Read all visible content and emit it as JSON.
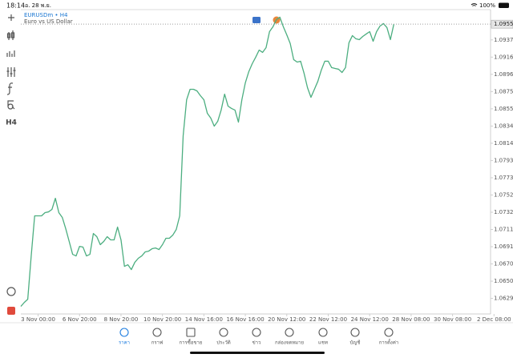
{
  "status_bar": {
    "time": "18:14",
    "date": "อ. 28 พ.ย.",
    "battery": "100%"
  },
  "toolbar": {
    "timeframe": "H4"
  },
  "chart_data": {
    "type": "line",
    "title": "EURUSDm • H4",
    "subtitle": "Euro vs US Dollar",
    "x": [
      0,
      1,
      2,
      3,
      4,
      5,
      6,
      7,
      8,
      9,
      10,
      11,
      12,
      13,
      14,
      15,
      16,
      17,
      18,
      19,
      20,
      21,
      22,
      23,
      24,
      25,
      26,
      27,
      28,
      29,
      30,
      31,
      32,
      33,
      34,
      35,
      36,
      37,
      38,
      39,
      40,
      41,
      42,
      43,
      44,
      45,
      46,
      47,
      48,
      49,
      50,
      51,
      52,
      53,
      54,
      55,
      56,
      57,
      58,
      59,
      60,
      61,
      62,
      63,
      64,
      65,
      66,
      67,
      68,
      69,
      70,
      71,
      72,
      73,
      74,
      75,
      76,
      77,
      78,
      79,
      80,
      81,
      82,
      83,
      84,
      85,
      86,
      87,
      88,
      89,
      90,
      91,
      92,
      93,
      94,
      95,
      96,
      97,
      98,
      99,
      100,
      101,
      102,
      103,
      104,
      105,
      106,
      107,
      108
    ],
    "values": [
      1.062,
      1.06247,
      1.06285,
      1.068,
      1.07277,
      1.07277,
      1.07277,
      1.07315,
      1.07324,
      1.07353,
      1.07486,
      1.07315,
      1.07258,
      1.07124,
      1.06972,
      1.06819,
      1.068,
      1.06914,
      1.06905,
      1.068,
      1.06819,
      1.07067,
      1.07029,
      1.06934,
      1.06972,
      1.07029,
      1.06991,
      1.06991,
      1.07143,
      1.06991,
      1.06676,
      1.06695,
      1.06638,
      1.06724,
      1.06772,
      1.068,
      1.06848,
      1.06857,
      1.06886,
      1.06895,
      1.06876,
      1.06934,
      1.0701,
      1.0701,
      1.07048,
      1.07115,
      1.07277,
      1.0823,
      1.08658,
      1.08782,
      1.08782,
      1.08763,
      1.08706,
      1.08658,
      1.08496,
      1.08439,
      1.08344,
      1.08401,
      1.08535,
      1.08725,
      1.08582,
      1.08554,
      1.08535,
      1.08392,
      1.08658,
      1.08859,
      1.08992,
      1.09087,
      1.09164,
      1.09249,
      1.09221,
      1.09278,
      1.09468,
      1.09526,
      1.09611,
      1.0964,
      1.09526,
      1.0943,
      1.09326,
      1.09135,
      1.09106,
      1.09116,
      1.08973,
      1.08801,
      1.08687,
      1.08782,
      1.08878,
      1.09011,
      1.09116,
      1.09116,
      1.0904,
      1.0903,
      1.09021,
      1.08982,
      1.0904,
      1.09335,
      1.09421,
      1.09383,
      1.09373,
      1.09411,
      1.0944,
      1.09468,
      1.09354,
      1.09468,
      1.09535,
      1.09564,
      1.09516,
      1.09373,
      1.09557
    ],
    "color": "#4cae80",
    "current_price": 1.09557,
    "xlim": [
      0,
      136
    ],
    "ylim": [
      1.0611,
      1.0973
    ],
    "xticks": [
      {
        "value": 5,
        "label": "3 Nov 00:00"
      },
      {
        "value": 17,
        "label": "6 Nov 20:00"
      },
      {
        "value": 29,
        "label": "8 Nov 20:00"
      },
      {
        "value": 41,
        "label": "10 Nov 20:00"
      },
      {
        "value": 53,
        "label": "14 Nov 16:00"
      },
      {
        "value": 65,
        "label": "16 Nov 16:00"
      },
      {
        "value": 77,
        "label": "20 Nov 12:00"
      },
      {
        "value": 89,
        "label": "22 Nov 12:00"
      },
      {
        "value": 101,
        "label": "24 Nov 12:00"
      },
      {
        "value": 113,
        "label": "28 Nov 08:00"
      },
      {
        "value": 125,
        "label": "30 Nov 08:00"
      },
      {
        "value": 137,
        "label": "2 Dec 08:00"
      }
    ],
    "yticks": [
      1.06295,
      {
        "value": 1.065,
        "label": "1.06500"
      },
      1.06705,
      {
        "value": 1.0691,
        "label": "1.06910"
      },
      1.07115,
      {
        "value": 1.0732,
        "label": "1.07320"
      },
      1.07525,
      {
        "value": 1.0773,
        "label": "1.07730"
      },
      1.07935,
      {
        "value": 1.0814,
        "label": "1.08140"
      },
      1.08345,
      {
        "value": 1.0855,
        "label": "1.08550"
      },
      1.08755,
      {
        "value": 1.0896,
        "label": "1.08960"
      },
      1.09165,
      {
        "value": 1.0937,
        "label": "1.09370"
      }
    ]
  },
  "tab_bar": {
    "tabs": [
      "ราคา",
      "กราฟ",
      "การซื้อขาย",
      "ประวัติ",
      "ข่าว",
      "กล่องจดหมาย",
      "แชท",
      "บัญชี",
      "การตั้งค่า"
    ]
  }
}
